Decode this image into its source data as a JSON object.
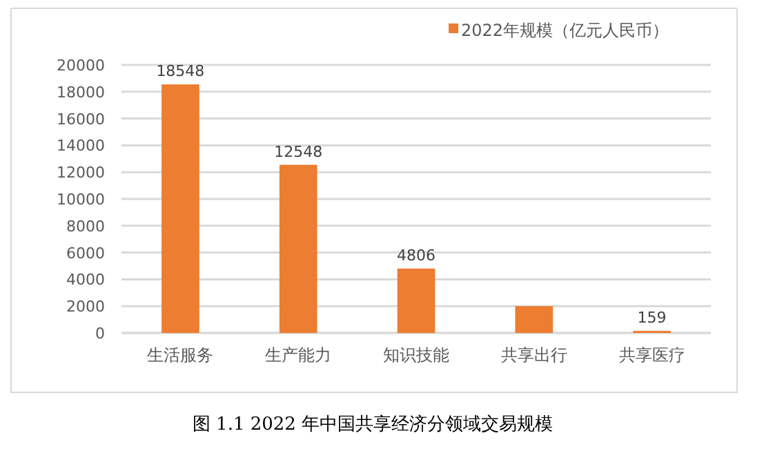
{
  "chart_data": {
    "type": "bar",
    "categories": [
      "生活服务",
      "生产能力",
      "知识技能",
      "共享出行",
      "共享医疗"
    ],
    "series": [
      {
        "name": "2022年规模（亿元人民币）",
        "color": "#ed7d31",
        "values": [
          18548,
          12548,
          4806,
          2000,
          159
        ],
        "value_labels": [
          "18548",
          "12548",
          "4806",
          null,
          "159"
        ]
      }
    ],
    "ylim": [
      0,
      20000
    ],
    "yticks": [
      0,
      2000,
      4000,
      6000,
      8000,
      10000,
      12000,
      14000,
      16000,
      18000,
      20000
    ],
    "grid": "y",
    "legend": "top right",
    "annotations": [
      "图 1.1 2022 年中国共享经济分领域交易规模"
    ]
  }
}
